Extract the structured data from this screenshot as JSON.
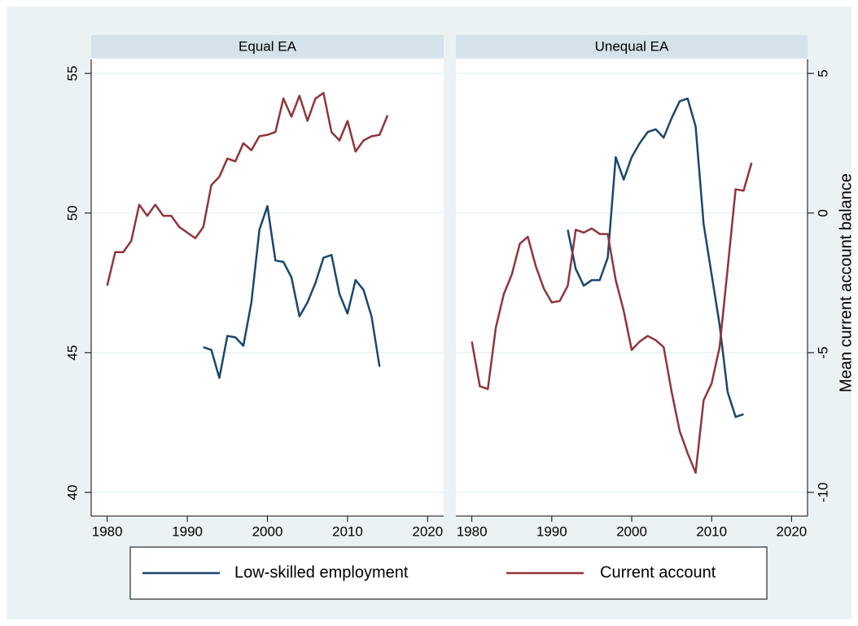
{
  "chart_data": [
    {
      "type": "line",
      "title": "Equal EA",
      "xlim": [
        1978,
        2022
      ],
      "xticks": [
        1980,
        1990,
        2000,
        2010,
        2020
      ],
      "ylim": [
        39.5,
        55.5
      ],
      "yticks": [
        40,
        45,
        50,
        55
      ],
      "y2lim": [
        -10.5,
        5.5
      ],
      "grid": true,
      "series": [
        {
          "name": "Low-skilled employment",
          "color": "#1a476f",
          "x": [
            1992,
            1993,
            1994,
            1995,
            1996,
            1997,
            1998,
            1999,
            2000,
            2001,
            2002,
            2003,
            2004,
            2005,
            2006,
            2007,
            2008,
            2009,
            2010,
            2011,
            2012,
            2013,
            2014
          ],
          "values": [
            45.2,
            45.1,
            44.1,
            45.6,
            45.55,
            45.25,
            46.8,
            49.4,
            50.25,
            48.3,
            48.25,
            47.7,
            46.3,
            46.8,
            47.5,
            48.4,
            48.5,
            47.1,
            46.4,
            47.6,
            47.25,
            46.3,
            44.5
          ]
        },
        {
          "name": "Current account",
          "color": "#90353b",
          "axis": "y2",
          "x": [
            1980,
            1981,
            1982,
            1983,
            1984,
            1985,
            1986,
            1987,
            1988,
            1989,
            1990,
            1991,
            1992,
            1993,
            1994,
            1995,
            1996,
            1997,
            1998,
            1999,
            2000,
            2001,
            2002,
            2003,
            2004,
            2005,
            2006,
            2007,
            2008,
            2009,
            2010,
            2011,
            2012,
            2013,
            2014,
            2015
          ],
          "values": [
            -2.6,
            -1.4,
            -1.4,
            -1.0,
            0.3,
            -0.1,
            0.3,
            -0.1,
            -0.1,
            -0.5,
            -0.7,
            -0.9,
            -0.5,
            1.0,
            1.3,
            1.95,
            1.85,
            2.5,
            2.25,
            2.75,
            2.8,
            2.9,
            4.1,
            3.45,
            4.2,
            3.3,
            4.1,
            4.3,
            2.9,
            2.6,
            3.3,
            2.2,
            2.6,
            2.75,
            2.8,
            3.5
          ]
        }
      ]
    },
    {
      "type": "line",
      "title": "Unequal EA",
      "xlim": [
        1978,
        2022
      ],
      "xticks": [
        1980,
        1990,
        2000,
        2010,
        2020
      ],
      "ylim": [
        39.5,
        55.5
      ],
      "y2lim": [
        -10.5,
        5.5
      ],
      "y2ticks": [
        -10,
        -5,
        0,
        5
      ],
      "y2label": "Mean current account balance",
      "grid": true,
      "series": [
        {
          "color": "#1a476f",
          "x": [
            1992,
            1993,
            1994,
            1995,
            1996,
            1997,
            1998,
            1999,
            2000,
            2001,
            2002,
            2003,
            2004,
            2005,
            2006,
            2007,
            2008,
            2009,
            2010,
            2011,
            2012,
            2013,
            2014
          ],
          "values": [
            49.4,
            48.0,
            47.4,
            47.6,
            47.6,
            48.4,
            52.0,
            51.2,
            52.0,
            52.5,
            52.9,
            53.0,
            52.7,
            53.4,
            54.0,
            54.1,
            53.1,
            49.6,
            47.8,
            46.0,
            43.6,
            42.7,
            42.8
          ]
        },
        {
          "color": "#90353b",
          "axis": "y2",
          "x": [
            1980,
            1981,
            1982,
            1983,
            1984,
            1985,
            1986,
            1987,
            1988,
            1989,
            1990,
            1991,
            1992,
            1993,
            1994,
            1995,
            1996,
            1997,
            1998,
            1999,
            2000,
            2001,
            2002,
            2003,
            2004,
            2005,
            2006,
            2007,
            2008,
            2009,
            2010,
            2011,
            2012,
            2013,
            2014,
            2015
          ],
          "values": [
            -4.6,
            -6.2,
            -6.3,
            -4.1,
            -2.9,
            -2.2,
            -1.1,
            -0.85,
            -1.9,
            -2.7,
            -3.2,
            -3.15,
            -2.6,
            -0.6,
            -0.7,
            -0.55,
            -0.75,
            -0.75,
            -2.4,
            -3.5,
            -4.9,
            -4.6,
            -4.4,
            -4.55,
            -4.8,
            -6.4,
            -7.8,
            -8.6,
            -9.3,
            -6.7,
            -6.1,
            -4.8,
            -2.0,
            0.85,
            0.8,
            1.8
          ]
        }
      ]
    }
  ]
}
